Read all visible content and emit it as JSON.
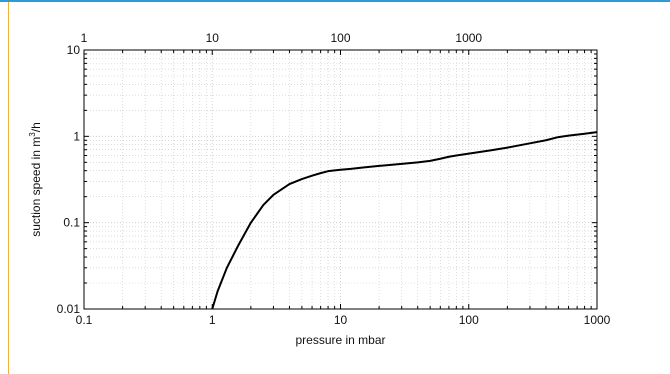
{
  "colors": {
    "frame_top": "#2e9bd6",
    "frame_left": "#f0b23c",
    "curve": "#000000",
    "grid": "#c8c8c8"
  },
  "chart_data": {
    "type": "line",
    "title": "",
    "xlabel": "pressure in mbar",
    "ylabel": "suction speed in m3/h",
    "xscale": "log",
    "yscale": "log",
    "xlim": [
      0.1,
      1000
    ],
    "ylim": [
      0.01,
      10
    ],
    "top_xlim": [
      1,
      1000
    ],
    "grid": true,
    "x_ticks": [
      "0.1",
      "1",
      "10",
      "100",
      "1000"
    ],
    "x_ticks_top": [
      "1",
      "10",
      "100",
      "1000"
    ],
    "y_ticks": [
      "0.01",
      "0.1",
      "1",
      "10"
    ],
    "series": [
      {
        "x": [
          1,
          1.1,
          1.3,
          1.6,
          2,
          2.5,
          3,
          4,
          5,
          6,
          7,
          8,
          10,
          12,
          15,
          20,
          30,
          40,
          50,
          60,
          70,
          80,
          100,
          150,
          200,
          300,
          400,
          500,
          600,
          800,
          1000
        ],
        "y": [
          0.01,
          0.016,
          0.03,
          0.055,
          0.1,
          0.16,
          0.21,
          0.28,
          0.32,
          0.35,
          0.375,
          0.395,
          0.41,
          0.42,
          0.435,
          0.455,
          0.48,
          0.5,
          0.52,
          0.55,
          0.58,
          0.6,
          0.63,
          0.69,
          0.74,
          0.83,
          0.9,
          0.98,
          1.02,
          1.07,
          1.12
        ]
      }
    ]
  }
}
